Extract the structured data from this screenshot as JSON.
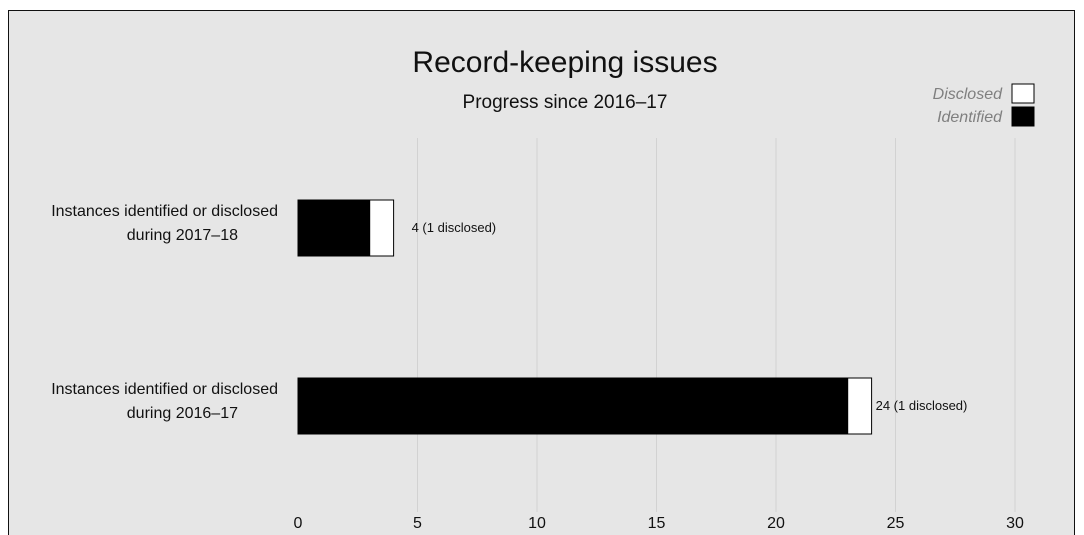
{
  "chart_data": {
    "type": "bar",
    "orientation": "horizontal",
    "stacked": true,
    "title": "Record-keeping issues",
    "subtitle": "Progress since 2016–17",
    "categories": [
      [
        "Instances identified or disclosed",
        "during 2017–18"
      ],
      [
        "Instances identified or disclosed",
        "during 2016–17"
      ]
    ],
    "series": [
      {
        "name": "Identified",
        "color": "#000000",
        "values": [
          3,
          23
        ]
      },
      {
        "name": "Disclosed",
        "color": "#ffffff",
        "values": [
          1,
          1
        ]
      }
    ],
    "data_labels": [
      "4 (1 disclosed)",
      "24 (1 disclosed)"
    ],
    "xlim": [
      0,
      30
    ],
    "xticks": [
      0,
      5,
      10,
      15,
      20,
      25,
      30
    ],
    "grid": true,
    "legend_position": "top-right",
    "legend_order": [
      "Disclosed",
      "Identified"
    ]
  }
}
